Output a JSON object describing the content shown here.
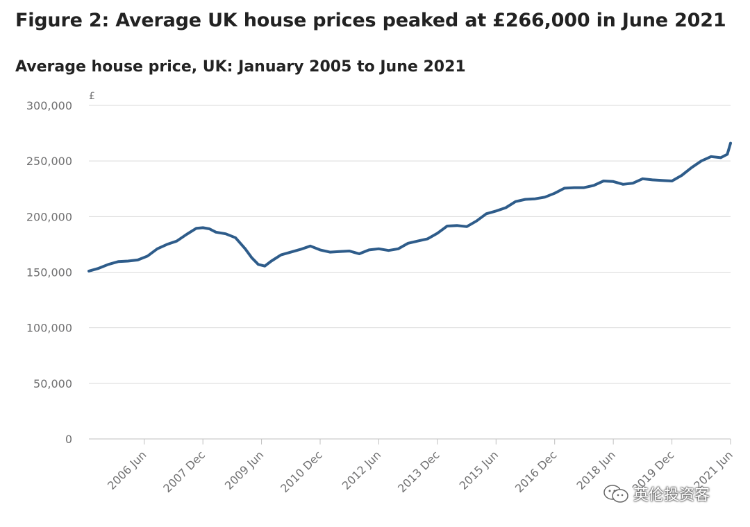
{
  "title": "Figure 2: Average UK house prices peaked at £266,000 in June 2021",
  "watermark": "英伦投资客",
  "chart_data": {
    "type": "line",
    "title": "Average house price, UK: January 2005 to June 2021",
    "ylabel": "£",
    "xlabel": "",
    "ylim": [
      0,
      300000
    ],
    "yticks": [
      0,
      50000,
      100000,
      150000,
      200000,
      250000,
      300000
    ],
    "ytick_labels": [
      "0",
      "50,000",
      "100,000",
      "150,000",
      "200,000",
      "250,000",
      "300,000"
    ],
    "x_range_months": [
      0,
      197
    ],
    "xtick_months": [
      17,
      35,
      53,
      71,
      89,
      107,
      125,
      143,
      161,
      179,
      197
    ],
    "xtick_labels": [
      "2006 Jun",
      "2007 Dec",
      "2009 Jun",
      "2010 Dec",
      "2012 Jun",
      "2013 Dec",
      "2015 Jun",
      "2016 Dec",
      "2018 Jun",
      "2019 Dec",
      "2021 Jun"
    ],
    "grid": true,
    "colors": {
      "line": "#2e5c8a",
      "grid": "#d9d9d9",
      "axis": "#bfbfbf"
    },
    "series": [
      {
        "name": "Average house price",
        "x_months": [
          0,
          3,
          6,
          9,
          12,
          15,
          18,
          21,
          24,
          27,
          30,
          33,
          35,
          37,
          39,
          42,
          45,
          48,
          50,
          52,
          54,
          56,
          59,
          62,
          65,
          68,
          71,
          74,
          77,
          80,
          83,
          86,
          89,
          92,
          95,
          98,
          101,
          104,
          107,
          110,
          113,
          116,
          119,
          122,
          125,
          128,
          131,
          134,
          137,
          140,
          143,
          146,
          149,
          152,
          155,
          158,
          161,
          164,
          167,
          170,
          173,
          176,
          179,
          182,
          185,
          188,
          191,
          194,
          196,
          197
        ],
        "values": [
          151000,
          153500,
          157000,
          159500,
          160000,
          161000,
          164500,
          171000,
          175000,
          178000,
          184000,
          189500,
          190000,
          189000,
          186000,
          184500,
          181000,
          171000,
          163000,
          157000,
          155500,
          160000,
          165500,
          168000,
          170500,
          173500,
          170000,
          168000,
          168500,
          169000,
          166500,
          170000,
          171000,
          169500,
          171000,
          176000,
          178000,
          180000,
          185000,
          191500,
          192000,
          191000,
          196000,
          202500,
          205000,
          208000,
          213500,
          215500,
          216000,
          217500,
          221000,
          225500,
          226000,
          226000,
          228000,
          232000,
          231500,
          229000,
          230000,
          234000,
          233000,
          232500,
          232000,
          237000,
          244000,
          250000,
          254000,
          253000,
          256000,
          266000
        ]
      }
    ]
  }
}
